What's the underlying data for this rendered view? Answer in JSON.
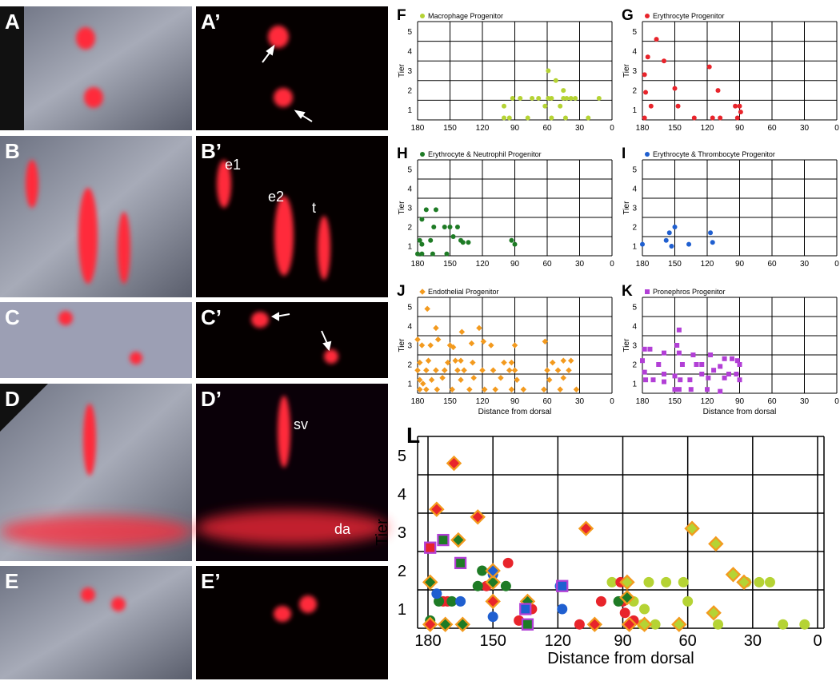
{
  "image_panels": [
    "A",
    "A’",
    "B",
    "B’",
    "C",
    "C’",
    "D",
    "D’",
    "E",
    "E’"
  ],
  "image_annotations": [
    "e1",
    "e2",
    "t",
    "sv",
    "da"
  ],
  "chart_data": [
    {
      "type": "scatter",
      "panel": "F",
      "ylabel": "Tier",
      "xlim": [
        180,
        0
      ],
      "xticks": [
        180,
        150,
        120,
        90,
        60,
        30,
        0
      ],
      "ylim": [
        0.5,
        5.5
      ],
      "yticks": [
        1,
        2,
        3,
        4,
        5
      ],
      "series": [
        {
          "name": "Macrophage Progenitor",
          "color": "#b5d334",
          "marker": "circle",
          "x": [
            100,
            100,
            95,
            92,
            85,
            78,
            74,
            68,
            62,
            59,
            59,
            56,
            56,
            52,
            48,
            45,
            45,
            43,
            42,
            38,
            34,
            22,
            12
          ],
          "values": [
            0.6,
            1.2,
            0.6,
            1.6,
            1.6,
            0.6,
            1.6,
            1.6,
            1.2,
            3.0,
            1.6,
            1.6,
            0.6,
            2.5,
            1.2,
            2.0,
            1.6,
            0.6,
            1.6,
            1.6,
            1.6,
            0.6,
            1.6
          ]
        }
      ]
    },
    {
      "type": "scatter",
      "panel": "G",
      "ylabel": "Tier",
      "xlim": [
        180,
        0
      ],
      "xticks": [
        180,
        150,
        120,
        90,
        60,
        30,
        0
      ],
      "ylim": [
        0.5,
        5.5
      ],
      "yticks": [
        1,
        2,
        3,
        4,
        5
      ],
      "series": [
        {
          "name": "Erythrocyte Progenitor",
          "color": "#e8242b",
          "marker": "circle",
          "x": [
            167,
            175,
            178,
            177,
            160,
            172,
            178,
            150,
            147,
            132,
            118,
            115,
            110,
            108,
            94,
            92,
            90,
            89
          ],
          "values": [
            4.6,
            3.7,
            2.8,
            1.9,
            3.5,
            1.2,
            0.6,
            2.1,
            1.2,
            0.6,
            3.2,
            0.6,
            2.0,
            0.6,
            1.2,
            0.6,
            1.2,
            0.9
          ]
        }
      ]
    },
    {
      "type": "scatter",
      "panel": "H",
      "ylabel": "Tier",
      "xlim": [
        180,
        0
      ],
      "xticks": [
        180,
        150,
        120,
        90,
        60,
        30,
        0
      ],
      "ylim": [
        0.5,
        5.5
      ],
      "yticks": [
        1,
        2,
        3,
        4,
        5
      ],
      "series": [
        {
          "name": "Erythrocyte & Neutrophil Progenitor",
          "color": "#1e7b25",
          "marker": "circle",
          "x": [
            172,
            163,
            176,
            165,
            155,
            150,
            143,
            178,
            168,
            147,
            138,
            133,
            180,
            176,
            166,
            153,
            140,
            93,
            90,
            176
          ],
          "values": [
            2.9,
            2.9,
            2.4,
            2.0,
            2.0,
            2.0,
            2.0,
            1.3,
            1.3,
            1.5,
            1.2,
            1.2,
            0.6,
            0.6,
            0.6,
            0.6,
            1.3,
            1.3,
            1.1,
            1.1
          ]
        }
      ]
    },
    {
      "type": "scatter",
      "panel": "I",
      "ylabel": "Tier",
      "xlim": [
        180,
        0
      ],
      "xticks": [
        180,
        150,
        120,
        90,
        60,
        30,
        0
      ],
      "ylim": [
        0.5,
        5.5
      ],
      "yticks": [
        1,
        2,
        3,
        4,
        5
      ],
      "series": [
        {
          "name": "Erythrocyte & Thrombocyte Progenitor",
          "color": "#1f5fd0",
          "marker": "circle",
          "x": [
            180,
            158,
            155,
            153,
            150,
            137,
            117,
            115
          ],
          "values": [
            1.1,
            1.3,
            1.7,
            1.0,
            2.0,
            1.1,
            1.7,
            1.2
          ]
        }
      ]
    },
    {
      "type": "scatter",
      "panel": "J",
      "ylabel": "Tier",
      "xlabel": "Distance from dorsal",
      "xlim": [
        180,
        0
      ],
      "xticks": [
        180,
        150,
        120,
        90,
        60,
        30,
        0
      ],
      "ylim": [
        0.5,
        5.5
      ],
      "yticks": [
        1,
        2,
        3,
        4,
        5
      ],
      "series": [
        {
          "name": "Endothelial Progenitor",
          "color": "#f39a1e",
          "marker": "diamond",
          "x": [
            171,
            163,
            139,
            123,
            180,
            176,
            168,
            161,
            150,
            147,
            130,
            119,
            112,
            90,
            62,
            178,
            170,
            152,
            145,
            129,
            100,
            93,
            55,
            45,
            38,
            140,
            180,
            172,
            163,
            155,
            143,
            137,
            120,
            110,
            95,
            90,
            60,
            50,
            40,
            178,
            175,
            167,
            157,
            140,
            128,
            103,
            88,
            58,
            45,
            178,
            172,
            162,
            148,
            132,
            118,
            108,
            93,
            82,
            63,
            48,
            33
          ],
          "values": [
            4.9,
            3.9,
            3.7,
            3.9,
            3.3,
            3.0,
            3.0,
            3.3,
            3.0,
            2.9,
            3.1,
            3.2,
            3.0,
            3.0,
            3.2,
            2.1,
            2.2,
            2.1,
            2.2,
            2.1,
            2.1,
            2.1,
            2.1,
            2.2,
            2.2,
            2.2,
            1.7,
            1.7,
            1.7,
            1.7,
            1.7,
            1.7,
            1.7,
            1.7,
            1.7,
            1.7,
            1.7,
            1.7,
            1.7,
            1.2,
            1.0,
            1.2,
            1.3,
            1.2,
            1.3,
            1.3,
            1.2,
            1.2,
            1.3,
            0.7,
            0.7,
            0.7,
            0.7,
            0.7,
            0.7,
            0.7,
            0.7,
            0.7,
            0.7,
            0.7,
            0.7
          ]
        }
      ]
    },
    {
      "type": "scatter",
      "panel": "K",
      "ylabel": "Tier",
      "xlabel": "Distance from dorsal",
      "xlim": [
        180,
        0
      ],
      "xticks": [
        180,
        150,
        120,
        90,
        60,
        30,
        0
      ],
      "ylim": [
        0.5,
        5.5
      ],
      "yticks": [
        1,
        2,
        3,
        4,
        5
      ],
      "series": [
        {
          "name": "Pronephros Progenitor",
          "color": "#b23fd6",
          "marker": "square",
          "x": [
            146,
            178,
            173,
            160,
            148,
            146,
            133,
            125,
            117,
            97,
            104,
            92,
            180,
            165,
            143,
            130,
            108,
            90,
            178,
            160,
            150,
            125,
            114,
            100,
            93,
            177,
            170,
            160,
            145,
            136,
            119,
            104,
            90,
            150,
            146,
            135,
            120,
            108
          ],
          "values": [
            3.8,
            2.8,
            2.8,
            2.6,
            3.0,
            2.6,
            2.5,
            2.0,
            2.5,
            2.3,
            2.3,
            2.2,
            2.2,
            2.0,
            2.0,
            2.0,
            1.9,
            2.0,
            1.6,
            1.5,
            1.4,
            1.5,
            1.7,
            1.5,
            1.5,
            1.2,
            1.2,
            1.1,
            1.2,
            1.2,
            1.3,
            1.3,
            1.2,
            0.7,
            0.7,
            0.7,
            0.7,
            0.6
          ]
        }
      ]
    },
    {
      "type": "scatter",
      "panel": "L",
      "ylabel": "Tier",
      "xlabel": "Distance from dorsal",
      "xlim": [
        180,
        0
      ],
      "xticks": [
        180,
        150,
        120,
        90,
        60,
        30,
        0
      ],
      "ylim": [
        0.5,
        5.5
      ],
      "yticks": [
        1,
        2,
        3,
        4,
        5
      ],
      "series": [
        {
          "color": "#b5d334",
          "marker": "circle",
          "x": [
            78,
            70,
            62,
            33,
            27,
            22,
            60,
            85,
            80,
            75,
            81,
            46,
            6,
            16,
            95
          ],
          "values": [
            1.7,
            1.7,
            1.7,
            1.7,
            1.7,
            1.7,
            1.2,
            1.2,
            1.0,
            0.6,
            0.6,
            0.6,
            0.6,
            0.6,
            1.7
          ]
        },
        {
          "color": "#e8242b",
          "marker": "circle",
          "x": [
            173,
            171,
            153,
            143,
            138,
            132,
            110,
            100,
            90,
            89,
            85,
            91,
            165
          ],
          "values": [
            1.2,
            1.2,
            1.6,
            2.2,
            0.7,
            1.0,
            0.6,
            1.2,
            1.2,
            0.9,
            0.7,
            1.7,
            2.2
          ]
        },
        {
          "color": "#1e7b25",
          "marker": "circle",
          "x": [
            175,
            169,
            157,
            155,
            144,
            92,
            179
          ],
          "values": [
            1.2,
            1.2,
            1.6,
            2.0,
            1.6,
            1.2,
            0.7
          ]
        },
        {
          "color": "#1f5fd0",
          "marker": "circle",
          "x": [
            176,
            165,
            150,
            118,
            119,
            150
          ],
          "values": [
            1.4,
            1.2,
            0.8,
            1.0,
            1.6,
            1.9
          ]
        },
        {
          "color": "#b5d334",
          "edgecolor": "#f39a1e",
          "marker": "diamond",
          "x": [
            58,
            47,
            39,
            34,
            88,
            48,
            80,
            64
          ],
          "values": [
            3.1,
            2.7,
            1.9,
            1.7,
            1.7,
            0.9,
            0.6,
            0.6
          ]
        },
        {
          "color": "#e8242b",
          "edgecolor": "#f39a1e",
          "marker": "diamond",
          "x": [
            168,
            176,
            157,
            107,
            150,
            103,
            87,
            179
          ],
          "values": [
            4.8,
            3.6,
            3.4,
            3.1,
            1.2,
            0.6,
            0.6,
            0.6
          ]
        },
        {
          "color": "#1e7b25",
          "edgecolor": "#f39a1e",
          "marker": "diamond",
          "x": [
            166,
            164,
            172,
            179,
            134,
            150,
            88
          ],
          "values": [
            2.8,
            0.6,
            0.6,
            1.7,
            1.2,
            1.7,
            1.3
          ]
        },
        {
          "color": "#1f5fd0",
          "edgecolor": "#f39a1e",
          "marker": "diamond",
          "x": [
            150
          ],
          "values": [
            2.0
          ]
        },
        {
          "color": "#e8242b",
          "edgecolor": "#b23fd6",
          "marker": "square",
          "x": [
            179
          ],
          "values": [
            2.6
          ]
        },
        {
          "color": "#1e7b25",
          "edgecolor": "#b23fd6",
          "marker": "square",
          "x": [
            165,
            134,
            173
          ],
          "values": [
            2.2,
            0.6,
            2.8
          ]
        },
        {
          "color": "#1f5fd0",
          "edgecolor": "#b23fd6",
          "marker": "square",
          "x": [
            135,
            118
          ],
          "values": [
            1.0,
            1.6
          ]
        }
      ]
    }
  ]
}
